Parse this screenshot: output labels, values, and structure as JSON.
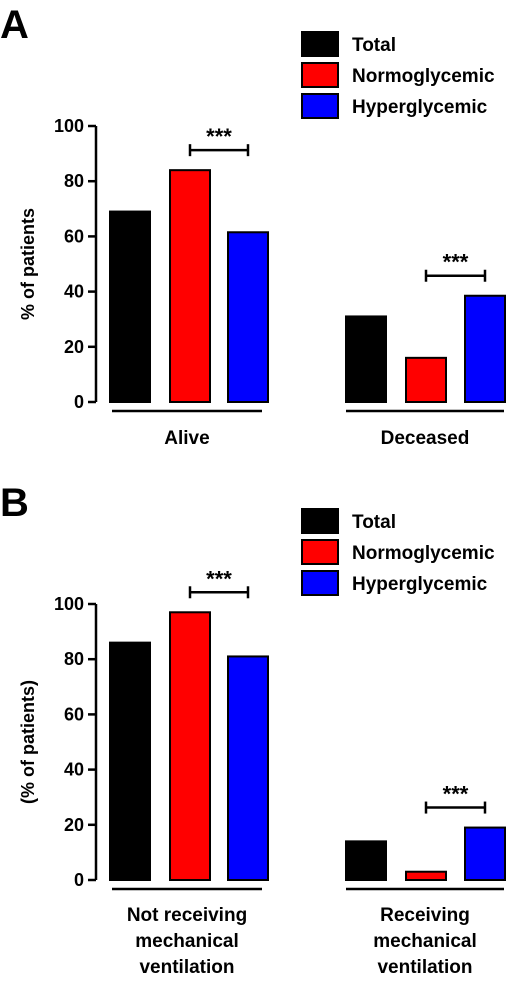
{
  "colors": {
    "Total": "#000000",
    "Normoglycemic": "#ff0000",
    "Hyperglycemic": "#0000ff"
  },
  "chart_data": [
    {
      "panel": "A",
      "type": "bar",
      "ylabel": "% of patients",
      "ylim": [
        0,
        100
      ],
      "yticks": [
        0,
        20,
        40,
        60,
        80,
        100
      ],
      "categories": [
        [
          "Alive"
        ],
        [
          "Deceased"
        ]
      ],
      "series": [
        {
          "name": "Total",
          "values": [
            69,
            31
          ]
        },
        {
          "name": "Normoglycemic",
          "values": [
            84,
            16
          ]
        },
        {
          "name": "Hyperglycemic",
          "values": [
            61.5,
            38.5
          ]
        }
      ],
      "legend": {
        "placement": "top-right"
      },
      "significance": [
        {
          "category": 0,
          "between": [
            "Normoglycemic",
            "Hyperglycemic"
          ],
          "label": "***"
        },
        {
          "category": 1,
          "between": [
            "Normoglycemic",
            "Hyperglycemic"
          ],
          "label": "***"
        }
      ]
    },
    {
      "panel": "B",
      "type": "bar",
      "ylabel": "(% of patients)",
      "ylim": [
        0,
        100
      ],
      "yticks": [
        0,
        20,
        40,
        60,
        80,
        100
      ],
      "categories": [
        [
          "Not receiving",
          "mechanical",
          "ventilation"
        ],
        [
          "Receiving",
          "mechanical",
          "ventilation"
        ]
      ],
      "series": [
        {
          "name": "Total",
          "values": [
            86,
            14
          ]
        },
        {
          "name": "Normoglycemic",
          "values": [
            97,
            3
          ]
        },
        {
          "name": "Hyperglycemic",
          "values": [
            81,
            19
          ]
        }
      ],
      "legend": {
        "placement": "top-right"
      },
      "significance": [
        {
          "category": 0,
          "between": [
            "Normoglycemic",
            "Hyperglycemic"
          ],
          "label": "***"
        },
        {
          "category": 1,
          "between": [
            "Normoglycemic",
            "Hyperglycemic"
          ],
          "label": "***"
        }
      ]
    }
  ]
}
